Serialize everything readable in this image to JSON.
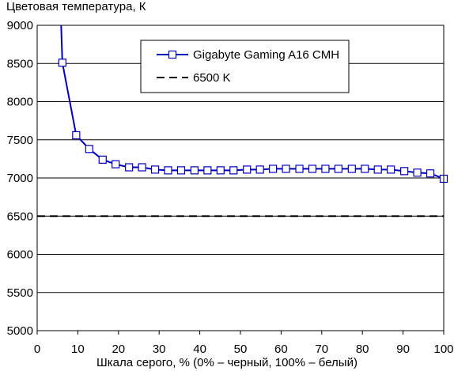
{
  "chart_data": {
    "type": "line",
    "title": "Цветовая температура, К",
    "xlabel": "Шкала серого, % (0% – черный, 100% – белый)",
    "ylabel": "",
    "xlim": [
      0,
      100
    ],
    "ylim": [
      5000,
      9000
    ],
    "x_ticks": [
      "0",
      "10",
      "20",
      "30",
      "40",
      "50",
      "60",
      "70",
      "80",
      "90",
      "100"
    ],
    "y_ticks": [
      "5000",
      "5500",
      "6000",
      "6500",
      "7000",
      "7500",
      "8000",
      "8500",
      "9000"
    ],
    "grid": "horizontal",
    "legend_position": "top-center",
    "series": [
      {
        "name": "Gigabyte Gaming A16 CMH",
        "color": "#0000c0",
        "marker": "square",
        "x": [
          6.2,
          9.6,
          12.8,
          16.1,
          19.3,
          22.6,
          25.8,
          29.0,
          32.2,
          35.4,
          38.7,
          41.9,
          45.1,
          48.3,
          51.6,
          54.8,
          58.0,
          61.2,
          64.5,
          67.7,
          70.9,
          74.1,
          77.4,
          80.6,
          83.8,
          87.0,
          90.3,
          93.5,
          96.7,
          100
        ],
        "y": [
          8510,
          7560,
          7380,
          7240,
          7180,
          7140,
          7140,
          7110,
          7100,
          7100,
          7100,
          7100,
          7100,
          7100,
          7110,
          7110,
          7120,
          7120,
          7120,
          7120,
          7120,
          7120,
          7120,
          7120,
          7110,
          7110,
          7090,
          7070,
          7060,
          6990
        ],
        "line_extension": {
          "x": [
            5.9,
            6.2
          ],
          "y": [
            9000,
            8510
          ]
        }
      },
      {
        "name": "6500 K",
        "color": "#000000",
        "style": "dashed",
        "x": [
          0,
          100
        ],
        "y": [
          6500,
          6500
        ]
      }
    ]
  }
}
